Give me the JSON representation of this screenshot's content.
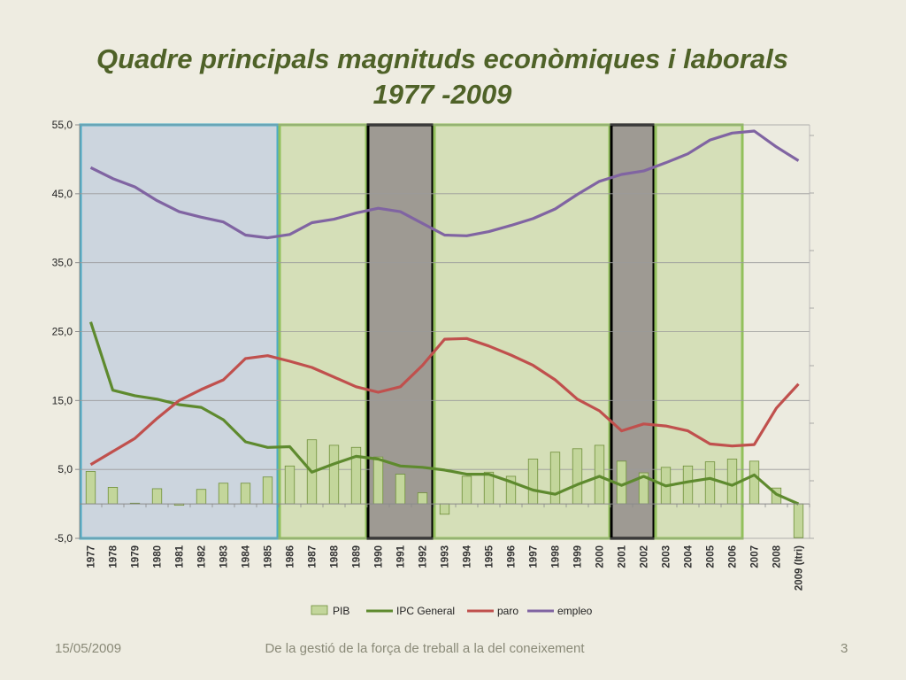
{
  "slide": {
    "title_line1": "Quadre principals magnituds econòmiques i laborals",
    "title_line2": "1977 -2009",
    "footer_date": "15/05/2009",
    "footer_text": "De la gestió de la força de treball a la del coneixement",
    "page_number": "3"
  },
  "chart_data": {
    "type": "bar+line",
    "title": "",
    "xlabel": "",
    "ylabel": "",
    "ylim": [
      -5,
      55
    ],
    "yticks": [
      -5,
      5,
      15,
      25,
      35,
      45,
      55
    ],
    "ytick_labels": [
      "-5,0",
      "5,0",
      "15,0",
      "25,0",
      "35,0",
      "45,0",
      "55,0"
    ],
    "grid": true,
    "legend_position": "bottom",
    "categories": [
      "1977",
      "1978",
      "1979",
      "1980",
      "1981",
      "1982",
      "1983",
      "1984",
      "1985",
      "1986",
      "1987",
      "1988",
      "1989",
      "1990",
      "1991",
      "1992",
      "1993",
      "1994",
      "1995",
      "1996",
      "1997",
      "1998",
      "1999",
      "2000",
      "2001",
      "2002",
      "2003",
      "2004",
      "2005",
      "2006",
      "2007",
      "2008",
      "2009 (Itri)"
    ],
    "series": [
      {
        "name": "PIB",
        "type": "bar",
        "color": "#c3d69b",
        "values": [
          4.7,
          2.4,
          0.1,
          2.2,
          -0.2,
          2.1,
          3.0,
          3.0,
          3.9,
          5.5,
          9.3,
          8.5,
          8.2,
          6.8,
          4.3,
          1.6,
          -1.5,
          4.0,
          4.6,
          4.0,
          6.5,
          7.5,
          8.0,
          8.5,
          6.2,
          4.5,
          5.3,
          5.5,
          6.1,
          6.5,
          6.2,
          2.3,
          -4.9
        ]
      },
      {
        "name": "IPC General",
        "type": "line",
        "color": "#5e8a2e",
        "values": [
          26.4,
          16.5,
          15.7,
          15.2,
          14.4,
          14.0,
          12.2,
          9.0,
          8.2,
          8.3,
          4.6,
          5.8,
          6.9,
          6.5,
          5.5,
          5.3,
          4.9,
          4.3,
          4.3,
          3.2,
          2.0,
          1.4,
          2.8,
          4.0,
          2.7,
          4.0,
          2.6,
          3.2,
          3.7,
          2.7,
          4.2,
          1.4,
          0.0
        ]
      },
      {
        "name": "paro",
        "type": "line",
        "color": "#c0504d",
        "values": [
          5.7,
          7.6,
          9.5,
          12.4,
          15.0,
          16.6,
          18.0,
          21.1,
          21.5,
          20.7,
          19.8,
          18.4,
          17.0,
          16.2,
          17.0,
          20.1,
          23.9,
          24.0,
          22.9,
          21.6,
          20.1,
          18.0,
          15.2,
          13.5,
          10.6,
          11.6,
          11.3,
          10.6,
          8.7,
          8.4,
          8.6,
          13.9,
          17.4
        ]
      },
      {
        "name": "empleo",
        "type": "line",
        "color": "#8064a2",
        "values": [
          48.8,
          47.2,
          46.0,
          44.0,
          42.4,
          41.6,
          40.9,
          39.0,
          38.6,
          39.1,
          40.8,
          41.3,
          42.2,
          42.9,
          42.4,
          40.7,
          39.0,
          38.9,
          39.5,
          40.4,
          41.4,
          42.8,
          44.9,
          46.8,
          47.8,
          48.3,
          49.5,
          50.8,
          52.8,
          53.8,
          54.1,
          51.8,
          49.8
        ]
      }
    ],
    "periods": [
      {
        "from": "1977",
        "to": "1985",
        "fill": "#ccd5de",
        "stroke": "#4bacc6"
      },
      {
        "from": "1986",
        "to": "1989",
        "fill": "#d5dfb8",
        "stroke": "#92c05c"
      },
      {
        "from": "1990",
        "to": "1992",
        "fill": "#9e9a93",
        "stroke": "#000000"
      },
      {
        "from": "1993",
        "to": "2000",
        "fill": "#d5dfb8",
        "stroke": "#92c05c"
      },
      {
        "from": "2001",
        "to": "2002",
        "fill": "#9e9a93",
        "stroke": "#000000"
      },
      {
        "from": "2003",
        "to": "2006",
        "fill": "#d5dfb8",
        "stroke": "#92c05c"
      }
    ]
  }
}
